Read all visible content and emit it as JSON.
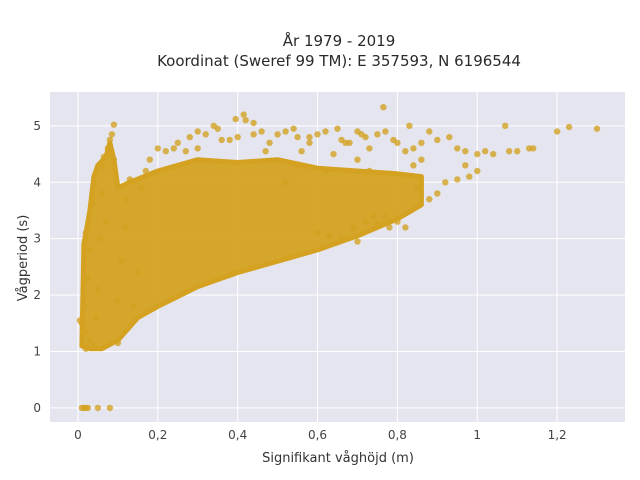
{
  "chart_data": {
    "type": "scatter",
    "title_lines": [
      "År 1979 - 2019",
      "Koordinat (Sweref 99 TM): E 357593, N 6196544"
    ],
    "xlabel": "Signifikant våghöjd (m)",
    "ylabel": "Vågperiod (s)",
    "xlim": [
      -0.07,
      1.37
    ],
    "ylim": [
      -0.25,
      5.6
    ],
    "x_ticks": [
      0,
      0.2,
      0.4,
      0.6,
      0.8,
      1,
      1.2
    ],
    "x_tick_labels": [
      "0",
      "0,2",
      "0,4",
      "0,6",
      "0,8",
      "1",
      "1,2"
    ],
    "y_ticks": [
      0,
      1,
      2,
      3,
      4,
      5
    ],
    "y_tick_labels": [
      "0",
      "1",
      "2",
      "3",
      "4",
      "5"
    ],
    "grid": true,
    "point_color": "#d4a220",
    "plot_background": "#e5e5ef",
    "points": [
      [
        0.01,
        0.0
      ],
      [
        0.015,
        0.0
      ],
      [
        0.02,
        0.0
      ],
      [
        0.025,
        0.0
      ],
      [
        0.05,
        0.0
      ],
      [
        0.08,
        0.0
      ],
      [
        0.005,
        1.55
      ],
      [
        0.01,
        1.5
      ],
      [
        0.015,
        1.8
      ],
      [
        0.02,
        1.35
      ],
      [
        0.02,
        1.05
      ],
      [
        0.03,
        1.2
      ],
      [
        0.025,
        2.3
      ],
      [
        0.03,
        2.8
      ],
      [
        0.035,
        3.6
      ],
      [
        0.02,
        3.1
      ],
      [
        0.04,
        1.1
      ],
      [
        0.045,
        1.6
      ],
      [
        0.05,
        2.1
      ],
      [
        0.055,
        3.0
      ],
      [
        0.06,
        3.8
      ],
      [
        0.06,
        4.3
      ],
      [
        0.065,
        4.45
      ],
      [
        0.07,
        3.3
      ],
      [
        0.075,
        4.6
      ],
      [
        0.08,
        4.75
      ],
      [
        0.085,
        4.85
      ],
      [
        0.09,
        5.02
      ],
      [
        0.09,
        4.4
      ],
      [
        0.1,
        1.15
      ],
      [
        0.1,
        1.9
      ],
      [
        0.11,
        2.6
      ],
      [
        0.12,
        3.2
      ],
      [
        0.12,
        3.7
      ],
      [
        0.13,
        4.05
      ],
      [
        0.14,
        1.8
      ],
      [
        0.15,
        2.4
      ],
      [
        0.16,
        3.9
      ],
      [
        0.17,
        4.2
      ],
      [
        0.18,
        4.4
      ],
      [
        0.2,
        4.6
      ],
      [
        0.22,
        4.55
      ],
      [
        0.25,
        4.7
      ],
      [
        0.28,
        4.8
      ],
      [
        0.3,
        4.9
      ],
      [
        0.32,
        4.85
      ],
      [
        0.35,
        4.95
      ],
      [
        0.38,
        4.75
      ],
      [
        0.4,
        4.8
      ],
      [
        0.42,
        5.1
      ],
      [
        0.44,
        4.85
      ],
      [
        0.46,
        4.9
      ],
      [
        0.48,
        4.7
      ],
      [
        0.5,
        4.85
      ],
      [
        0.52,
        4.9
      ],
      [
        0.55,
        4.8
      ],
      [
        0.58,
        4.8
      ],
      [
        0.6,
        4.85
      ],
      [
        0.62,
        4.9
      ],
      [
        0.65,
        4.95
      ],
      [
        0.68,
        4.7
      ],
      [
        0.7,
        4.9
      ],
      [
        0.72,
        4.8
      ],
      [
        0.75,
        4.85
      ],
      [
        0.77,
        4.9
      ],
      [
        0.8,
        4.7
      ],
      [
        0.82,
        4.55
      ],
      [
        0.84,
        4.6
      ],
      [
        0.86,
        4.7
      ],
      [
        0.88,
        4.9
      ],
      [
        0.9,
        4.75
      ],
      [
        0.93,
        4.8
      ],
      [
        0.95,
        4.6
      ],
      [
        0.97,
        4.55
      ],
      [
        1.0,
        4.5
      ],
      [
        1.02,
        4.55
      ],
      [
        1.04,
        4.5
      ],
      [
        1.07,
        5.0
      ],
      [
        1.08,
        4.55
      ],
      [
        1.1,
        4.55
      ],
      [
        1.13,
        4.6
      ],
      [
        1.14,
        4.6
      ],
      [
        1.2,
        4.9
      ],
      [
        1.23,
        4.98
      ],
      [
        1.3,
        4.95
      ],
      [
        0.52,
        4.0
      ],
      [
        0.55,
        4.3
      ],
      [
        0.62,
        4.2
      ],
      [
        0.64,
        4.5
      ],
      [
        0.7,
        4.4
      ],
      [
        0.73,
        4.2
      ],
      [
        0.77,
        3.4
      ],
      [
        0.78,
        3.2
      ],
      [
        0.8,
        3.3
      ],
      [
        0.82,
        3.2
      ],
      [
        0.85,
        3.9
      ],
      [
        0.88,
        3.7
      ],
      [
        0.9,
        3.8
      ],
      [
        0.92,
        4.0
      ],
      [
        0.95,
        4.05
      ],
      [
        0.98,
        4.1
      ],
      [
        1.0,
        4.2
      ],
      [
        0.97,
        4.3
      ],
      [
        0.86,
        4.4
      ],
      [
        0.84,
        4.3
      ],
      [
        0.6,
        3.1
      ],
      [
        0.63,
        3.05
      ],
      [
        0.66,
        3.0
      ],
      [
        0.69,
        3.2
      ],
      [
        0.72,
        3.3
      ],
      [
        0.74,
        3.4
      ],
      [
        0.7,
        2.95
      ],
      [
        0.75,
        3.25
      ],
      [
        0.83,
        5.0
      ],
      [
        0.58,
        4.7
      ],
      [
        0.56,
        4.55
      ],
      [
        0.47,
        4.55
      ],
      [
        0.36,
        4.75
      ],
      [
        0.34,
        5.0
      ],
      [
        0.3,
        4.6
      ],
      [
        0.27,
        4.55
      ],
      [
        0.24,
        4.6
      ],
      [
        0.765,
        5.33
      ],
      [
        0.415,
        5.2
      ],
      [
        0.395,
        5.12
      ],
      [
        0.44,
        5.05
      ],
      [
        0.54,
        4.95
      ],
      [
        0.66,
        4.75
      ],
      [
        0.71,
        4.85
      ],
      [
        0.79,
        4.75
      ],
      [
        0.67,
        4.7
      ],
      [
        0.73,
        4.6
      ]
    ]
  }
}
